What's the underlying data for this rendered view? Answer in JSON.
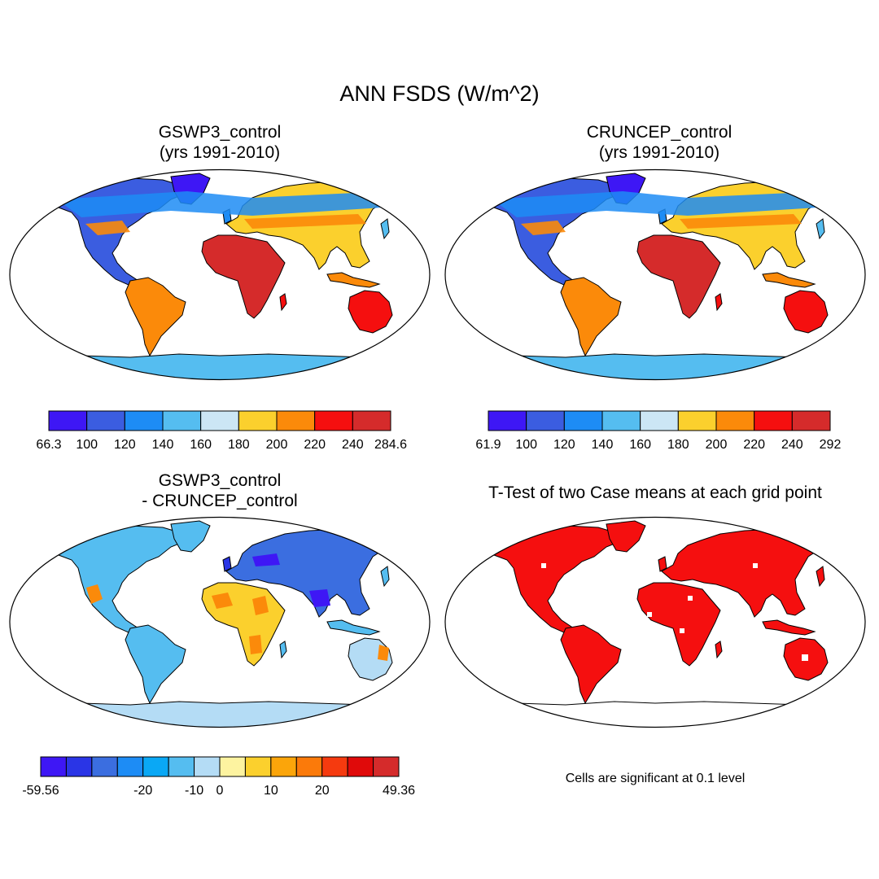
{
  "figure": {
    "title": "ANN FSDS (W/m^2)"
  },
  "panels": [
    {
      "id": "gswp3",
      "title_line1": "GSWP3_control",
      "title_line2": "(yrs 1991-2010)",
      "colorbar": {
        "colors": [
          "#3e17f5",
          "#3b5de0",
          "#1d8cf5",
          "#55bdf0",
          "#cce6f5",
          "#fbd02d",
          "#fb8a0a",
          "#f50f0f",
          "#d52b2b"
        ],
        "labels": [
          "66.3",
          "100",
          "120",
          "140",
          "160",
          "180",
          "200",
          "220",
          "240",
          "284.6"
        ]
      }
    },
    {
      "id": "cruncep",
      "title_line1": "CRUNCEP_control",
      "title_line2": "(yrs 1991-2010)",
      "colorbar": {
        "colors": [
          "#3e17f5",
          "#3b5de0",
          "#1d8cf5",
          "#55bdf0",
          "#cce6f5",
          "#fbd02d",
          "#fb8a0a",
          "#f50f0f",
          "#d52b2b"
        ],
        "labels": [
          "61.9",
          "100",
          "120",
          "140",
          "160",
          "180",
          "200",
          "220",
          "240",
          "292"
        ]
      }
    },
    {
      "id": "difference",
      "title_line1": "GSWP3_control",
      "title_line2": "- CRUNCEP_control",
      "colorbar": {
        "colors": [
          "#3e17f5",
          "#2a35e6",
          "#3b6ee0",
          "#1d8cf5",
          "#0aa8f5",
          "#55bdf0",
          "#b4dcf5",
          "#fdf3a0",
          "#fbd02d",
          "#fba50a",
          "#fb7a0a",
          "#f53a0f",
          "#e00a0a",
          "#d52b2b"
        ],
        "labels": [
          {
            "text": "-59.56",
            "boundary": 0
          },
          {
            "text": "-20",
            "boundary": 4
          },
          {
            "text": "-10",
            "boundary": 6
          },
          {
            "text": "0",
            "boundary": 7
          },
          {
            "text": "10",
            "boundary": 9
          },
          {
            "text": "20",
            "boundary": 11
          },
          {
            "text": "49.36",
            "boundary": 14
          }
        ]
      }
    },
    {
      "id": "ttest",
      "title_line1": "T-Test of two Case means at each grid point",
      "caption": "Cells are significant at 0.1 level",
      "significant_color": "#f50f0f"
    }
  ]
}
